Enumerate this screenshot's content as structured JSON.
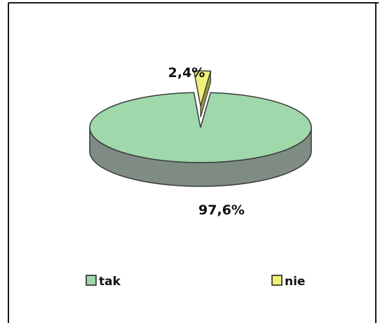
{
  "chart_data": {
    "type": "pie",
    "style": "3d",
    "categories": [
      "tak",
      "nie"
    ],
    "values": [
      97.6,
      2.4
    ],
    "data_labels": [
      "97,6%",
      "2,4%"
    ],
    "colors": {
      "tak": "#9fd8ab",
      "tak_side": "#7f8c83",
      "nie": "#eef07a",
      "nie_side": "#9a9a44",
      "outline": "#3a3a3a",
      "frame": "#1a1a1a"
    },
    "exploded": [
      "nie"
    ],
    "legend": {
      "placement": "bottom",
      "items": [
        "tak",
        "nie"
      ]
    },
    "title": ""
  }
}
